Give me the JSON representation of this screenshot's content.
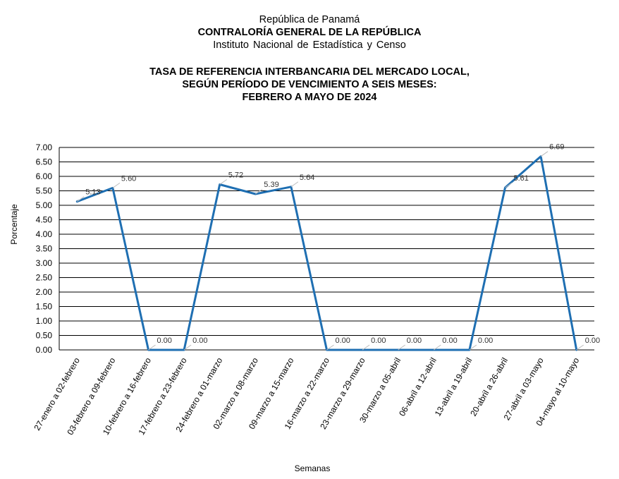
{
  "header": {
    "country": "República de Panamá",
    "institution": "CONTRALORÍA GENERAL DE LA REPÚBLICA",
    "institute": "Instituto  Nacional de Estadística  y  Censo"
  },
  "chart_data": {
    "type": "line",
    "title_lines": [
      "TASA DE REFERENCIA INTERBANCARIA DEL MERCADO LOCAL,",
      "SEGÚN PERÍODO DE VENCIMIENTO A SEIS MESES:",
      "FEBRERO A MAYO DE 2024"
    ],
    "xlabel": "Semanas",
    "ylabel": "Porcentaje",
    "ylim": [
      0,
      7
    ],
    "ytick_step": 0.5,
    "grid": true,
    "legend": "none",
    "line_color": "#1f6fb2",
    "categories": [
      "27-enero a 02-febrero",
      "03-febrero a 09-febrero",
      "10-febrero a 16-febrero",
      "17-febrero a 23-febrero",
      "24-febrero a 01-marzo",
      "02-marzo a 08-marzo",
      "09-marzo a 15-marzo",
      "16-marzo a 22-marzo",
      "23-marzo a 29-marzo",
      "30-marzo a 05-abril",
      "06-abril a 12-abril",
      "13-abril a 19-abril",
      "20-abril a 26-abril",
      "27-abril a 03-mayo",
      "04-mayo al 10-mayo"
    ],
    "values": [
      5.13,
      5.6,
      0.0,
      0.0,
      5.72,
      5.39,
      5.64,
      0.0,
      0.0,
      0.0,
      0.0,
      0.0,
      5.61,
      6.69,
      0.0
    ],
    "data_labels": [
      "5.13",
      "5.60",
      "0.00",
      "0.00",
      "5.72",
      "5.39",
      "5.64",
      "0.00",
      "0.00",
      "0.00",
      "0.00",
      "0.00",
      "5.61",
      "6.69",
      "0.00"
    ]
  }
}
